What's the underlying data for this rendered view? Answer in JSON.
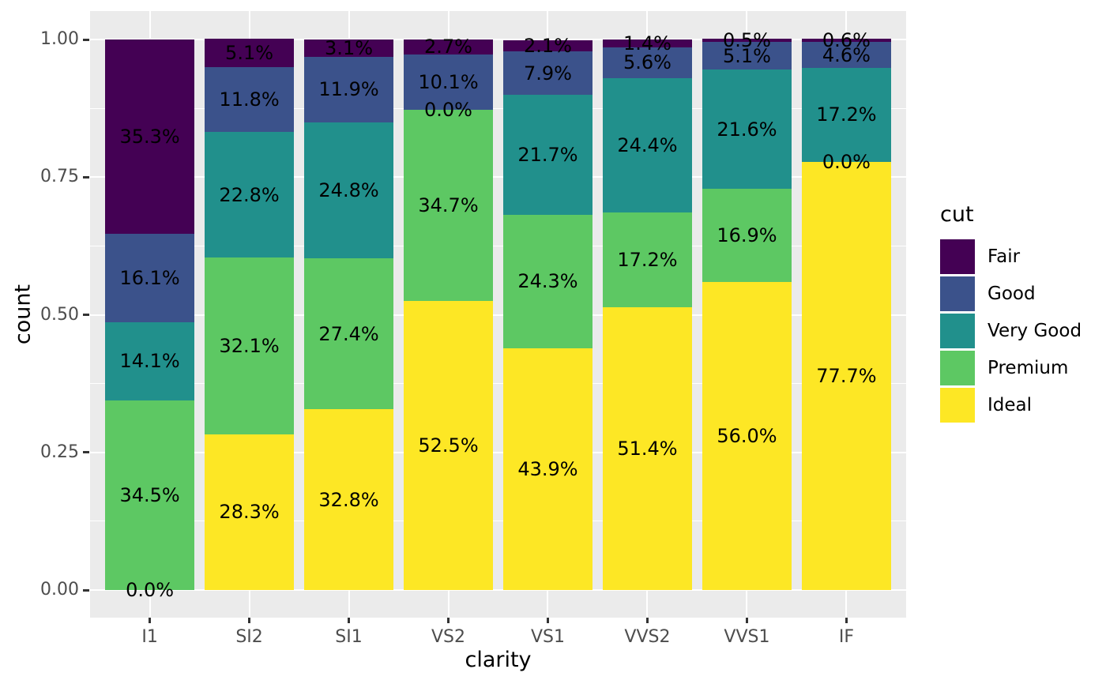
{
  "figure": {
    "background": "#FFFFFF",
    "panel_background": "#EBEBEB",
    "grid_color": "#FFFFFF",
    "axis_text_color": "#4D4D4D",
    "axis_title_color": "#000000",
    "tick_mark_color": "#333333",
    "bar_label_color": "#000000"
  },
  "chart_data": {
    "type": "bar",
    "subtype": "stacked-100-percent",
    "title": "",
    "xlabel": "clarity",
    "ylabel": "count",
    "legend_title": "cut",
    "legend_position": "right",
    "grid": true,
    "ylim": [
      0,
      1
    ],
    "y_ticks": [
      {
        "value": 0.0,
        "label": "0.00"
      },
      {
        "value": 0.25,
        "label": "0.25"
      },
      {
        "value": 0.5,
        "label": "0.50"
      },
      {
        "value": 0.75,
        "label": "0.75"
      },
      {
        "value": 1.0,
        "label": "1.00"
      }
    ],
    "y_minor_gridlines": [
      0.125,
      0.375,
      0.625,
      0.875
    ],
    "categories": [
      "I1",
      "SI2",
      "SI1",
      "VS2",
      "VS1",
      "VVS2",
      "VVS1",
      "IF"
    ],
    "stack_order_bottom_to_top": [
      "Ideal",
      "Premium",
      "Very Good",
      "Good",
      "Fair"
    ],
    "series": [
      {
        "name": "Fair",
        "color": "#440154",
        "values_pct": [
          35.3,
          5.1,
          3.1,
          2.7,
          2.1,
          1.4,
          0.5,
          0.6
        ],
        "labels": [
          "35.3%",
          "5.1%",
          "3.1%",
          "2.7%",
          "2.1%",
          "1.4%",
          "0.5%",
          "0.6%"
        ]
      },
      {
        "name": "Good",
        "color": "#3B528B",
        "values_pct": [
          16.1,
          11.8,
          11.9,
          10.1,
          7.9,
          5.6,
          5.1,
          4.6
        ],
        "labels": [
          "16.1%",
          "11.8%",
          "11.9%",
          "10.1%",
          "7.9%",
          "5.6%",
          "5.1%",
          "4.6%"
        ]
      },
      {
        "name": "Very Good",
        "color": "#21908C",
        "values_pct": [
          14.1,
          22.8,
          24.8,
          0.0,
          21.7,
          24.4,
          21.6,
          17.2
        ],
        "labels": [
          "14.1%",
          "22.8%",
          "24.8%",
          "0.0%",
          "21.7%",
          "24.4%",
          "21.6%",
          "17.2%"
        ]
      },
      {
        "name": "Premium",
        "color": "#5DC863",
        "values_pct": [
          34.5,
          32.1,
          27.4,
          34.7,
          24.3,
          17.2,
          16.9,
          0.0
        ],
        "labels": [
          "34.5%",
          "32.1%",
          "27.4%",
          "34.7%",
          "24.3%",
          "17.2%",
          "16.9%",
          "0.0%"
        ]
      },
      {
        "name": "Ideal",
        "color": "#FDE725",
        "values_pct": [
          0.0,
          28.3,
          32.8,
          52.5,
          43.9,
          51.4,
          56.0,
          77.7
        ],
        "labels": [
          "0.0%",
          "28.3%",
          "32.8%",
          "52.5%",
          "43.9%",
          "51.4%",
          "56.0%",
          "77.7%"
        ]
      }
    ]
  }
}
